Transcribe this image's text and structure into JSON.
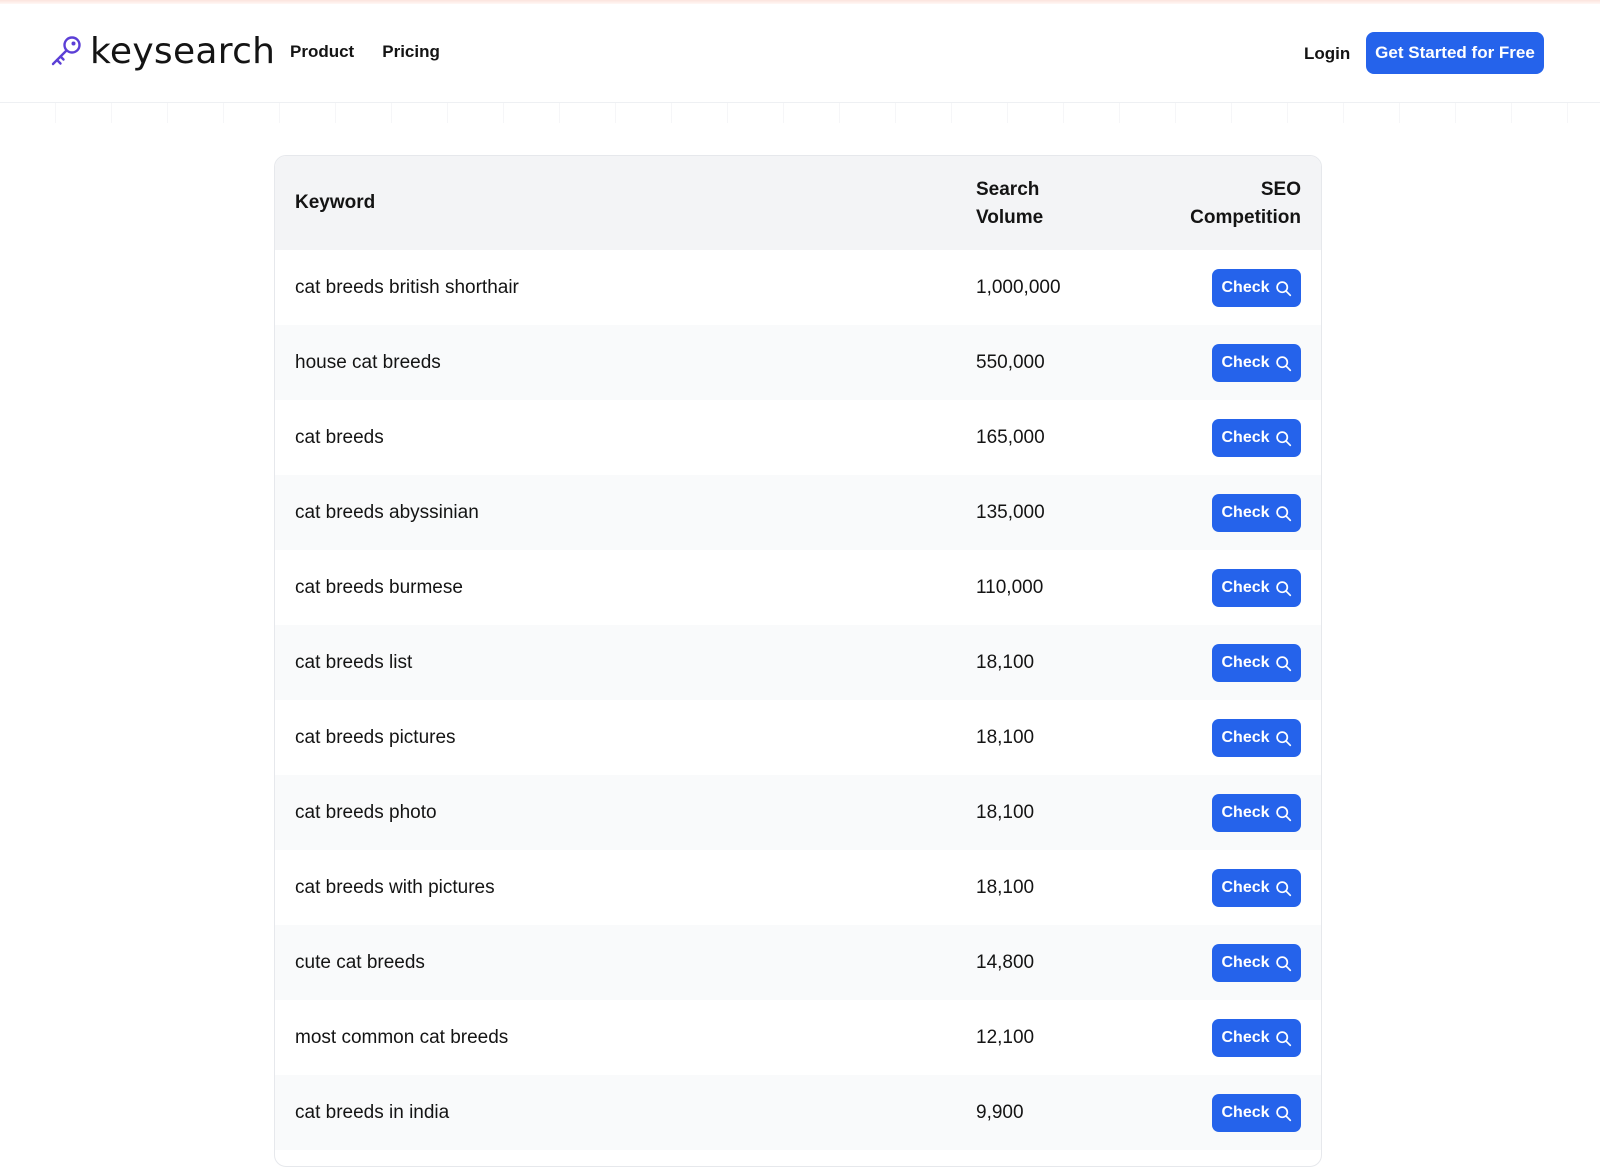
{
  "brand": {
    "name": "keysearch",
    "icon": "key-icon",
    "icon_color": "#5b3fd6"
  },
  "nav": {
    "items": [
      "Product",
      "Pricing"
    ]
  },
  "header": {
    "login_label": "Login",
    "cta_label": "Get Started for Free"
  },
  "colors": {
    "primary": "#2563eb",
    "header_bg": "#f3f4f6",
    "row_alt_bg": "#f9fafb"
  },
  "table": {
    "columns": {
      "keyword": "Keyword",
      "volume_line1": "Search",
      "volume_line2": "Volume",
      "seo_line1": "SEO",
      "seo_line2": "Competition"
    },
    "check_label": "Check",
    "check_icon": "search-icon",
    "rows": [
      {
        "keyword": "cat breeds british shorthair",
        "volume": "1,000,000"
      },
      {
        "keyword": "house cat breeds",
        "volume": "550,000"
      },
      {
        "keyword": "cat breeds",
        "volume": "165,000"
      },
      {
        "keyword": "cat breeds abyssinian",
        "volume": "135,000"
      },
      {
        "keyword": "cat breeds burmese",
        "volume": "110,000"
      },
      {
        "keyword": "cat breeds list",
        "volume": "18,100"
      },
      {
        "keyword": "cat breeds pictures",
        "volume": "18,100"
      },
      {
        "keyword": "cat breeds photo",
        "volume": "18,100"
      },
      {
        "keyword": "cat breeds with pictures",
        "volume": "18,100"
      },
      {
        "keyword": "cute cat breeds",
        "volume": "14,800"
      },
      {
        "keyword": "most common cat breeds",
        "volume": "12,100"
      },
      {
        "keyword": "cat breeds in india",
        "volume": "9,900"
      }
    ]
  }
}
